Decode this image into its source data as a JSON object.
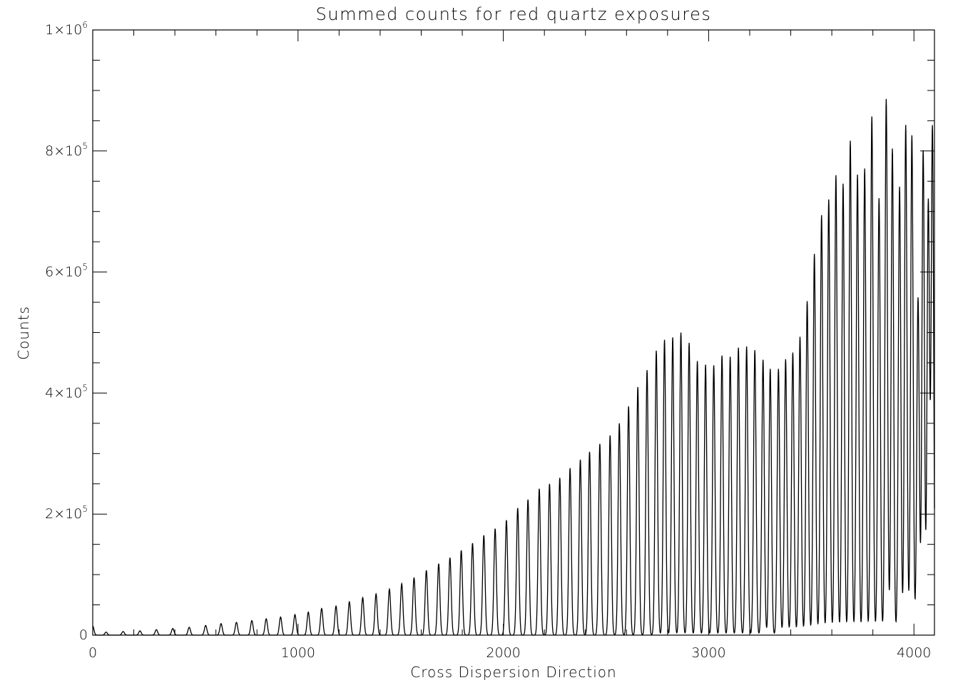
{
  "chart_data": {
    "type": "line",
    "title": "Summed counts for red quartz exposures",
    "xlabel": "Cross Dispersion Direction",
    "ylabel": "Counts",
    "xlim": [
      0,
      4100
    ],
    "ylim": [
      0,
      1000000
    ],
    "grid": false,
    "x_ticks": [
      {
        "value": 0,
        "label": "0"
      },
      {
        "value": 1000,
        "label": "1000"
      },
      {
        "value": 2000,
        "label": "2000"
      },
      {
        "value": 3000,
        "label": "3000"
      },
      {
        "value": 4000,
        "label": "4000"
      }
    ],
    "y_ticks": [
      {
        "value": 0,
        "label": "0",
        "base": "",
        "exp": ""
      },
      {
        "value": 200000,
        "label": "2×10^5",
        "base": "2×10",
        "exp": "5"
      },
      {
        "value": 400000,
        "label": "4×10^5",
        "base": "4×10",
        "exp": "5"
      },
      {
        "value": 600000,
        "label": "6×10^5",
        "base": "6×10",
        "exp": "5"
      },
      {
        "value": 800000,
        "label": "8×10^5",
        "base": "8×10",
        "exp": "5"
      },
      {
        "value": 1000000,
        "label": "1×10^6",
        "base": "1×10",
        "exp": "6"
      }
    ],
    "x_minor_step": 200,
    "y_minor_step": 50000,
    "series": [
      {
        "color": "#000000",
        "peak_width": 6,
        "peaks": [
          {
            "x": 0,
            "y": 15000
          },
          {
            "x": 65,
            "y": 5000
          },
          {
            "x": 148,
            "y": 6000
          },
          {
            "x": 230,
            "y": 7000
          },
          {
            "x": 310,
            "y": 9000
          },
          {
            "x": 390,
            "y": 11000
          },
          {
            "x": 470,
            "y": 13000
          },
          {
            "x": 550,
            "y": 16000
          },
          {
            "x": 625,
            "y": 19000
          },
          {
            "x": 700,
            "y": 21000
          },
          {
            "x": 775,
            "y": 24000
          },
          {
            "x": 845,
            "y": 27000
          },
          {
            "x": 915,
            "y": 30000
          },
          {
            "x": 985,
            "y": 34000
          },
          {
            "x": 1050,
            "y": 38000
          },
          {
            "x": 1115,
            "y": 44000
          },
          {
            "x": 1185,
            "y": 48000
          },
          {
            "x": 1250,
            "y": 55000
          },
          {
            "x": 1315,
            "y": 62000
          },
          {
            "x": 1380,
            "y": 68000
          },
          {
            "x": 1445,
            "y": 76000
          },
          {
            "x": 1505,
            "y": 85000
          },
          {
            "x": 1565,
            "y": 95000
          },
          {
            "x": 1625,
            "y": 107000
          },
          {
            "x": 1685,
            "y": 118000
          },
          {
            "x": 1740,
            "y": 128000
          },
          {
            "x": 1795,
            "y": 140000
          },
          {
            "x": 1850,
            "y": 152000
          },
          {
            "x": 1905,
            "y": 165000
          },
          {
            "x": 1960,
            "y": 176000
          },
          {
            "x": 2015,
            "y": 190000
          },
          {
            "x": 2070,
            "y": 210000
          },
          {
            "x": 2120,
            "y": 224000
          },
          {
            "x": 2175,
            "y": 242000
          },
          {
            "x": 2225,
            "y": 250000
          },
          {
            "x": 2275,
            "y": 260000
          },
          {
            "x": 2325,
            "y": 276000
          },
          {
            "x": 2375,
            "y": 290000
          },
          {
            "x": 2420,
            "y": 303000
          },
          {
            "x": 2470,
            "y": 316000
          },
          {
            "x": 2520,
            "y": 330000
          },
          {
            "x": 2565,
            "y": 350000
          },
          {
            "x": 2610,
            "y": 378000
          },
          {
            "x": 2655,
            "y": 410000
          },
          {
            "x": 2700,
            "y": 438000
          },
          {
            "x": 2745,
            "y": 470000
          },
          {
            "x": 2785,
            "y": 488000
          },
          {
            "x": 2825,
            "y": 492000
          },
          {
            "x": 2865,
            "y": 500000
          },
          {
            "x": 2905,
            "y": 483000
          },
          {
            "x": 2945,
            "y": 453000
          },
          {
            "x": 2985,
            "y": 447000
          },
          {
            "x": 3025,
            "y": 446000
          },
          {
            "x": 3065,
            "y": 462000
          },
          {
            "x": 3105,
            "y": 460000
          },
          {
            "x": 3145,
            "y": 475000
          },
          {
            "x": 3185,
            "y": 477000
          },
          {
            "x": 3225,
            "y": 471000
          },
          {
            "x": 3265,
            "y": 455000
          },
          {
            "x": 3300,
            "y": 440000
          },
          {
            "x": 3340,
            "y": 440000
          },
          {
            "x": 3375,
            "y": 456000
          },
          {
            "x": 3410,
            "y": 467000
          },
          {
            "x": 3445,
            "y": 493000
          },
          {
            "x": 3480,
            "y": 552000
          },
          {
            "x": 3515,
            "y": 630000
          },
          {
            "x": 3550,
            "y": 694000
          },
          {
            "x": 3585,
            "y": 720000
          },
          {
            "x": 3620,
            "y": 760000
          },
          {
            "x": 3655,
            "y": 746000
          },
          {
            "x": 3690,
            "y": 817000
          },
          {
            "x": 3725,
            "y": 761000
          },
          {
            "x": 3760,
            "y": 771000
          },
          {
            "x": 3795,
            "y": 857000
          },
          {
            "x": 3830,
            "y": 722000
          },
          {
            "x": 3865,
            "y": 886000
          },
          {
            "x": 3895,
            "y": 804000
          },
          {
            "x": 3930,
            "y": 741000
          },
          {
            "x": 3960,
            "y": 843000
          },
          {
            "x": 3990,
            "y": 826000
          },
          {
            "x": 4020,
            "y": 558000
          },
          {
            "x": 4045,
            "y": 801000
          },
          {
            "x": 4070,
            "y": 718000
          },
          {
            "x": 4090,
            "y": 840000
          }
        ]
      }
    ]
  }
}
